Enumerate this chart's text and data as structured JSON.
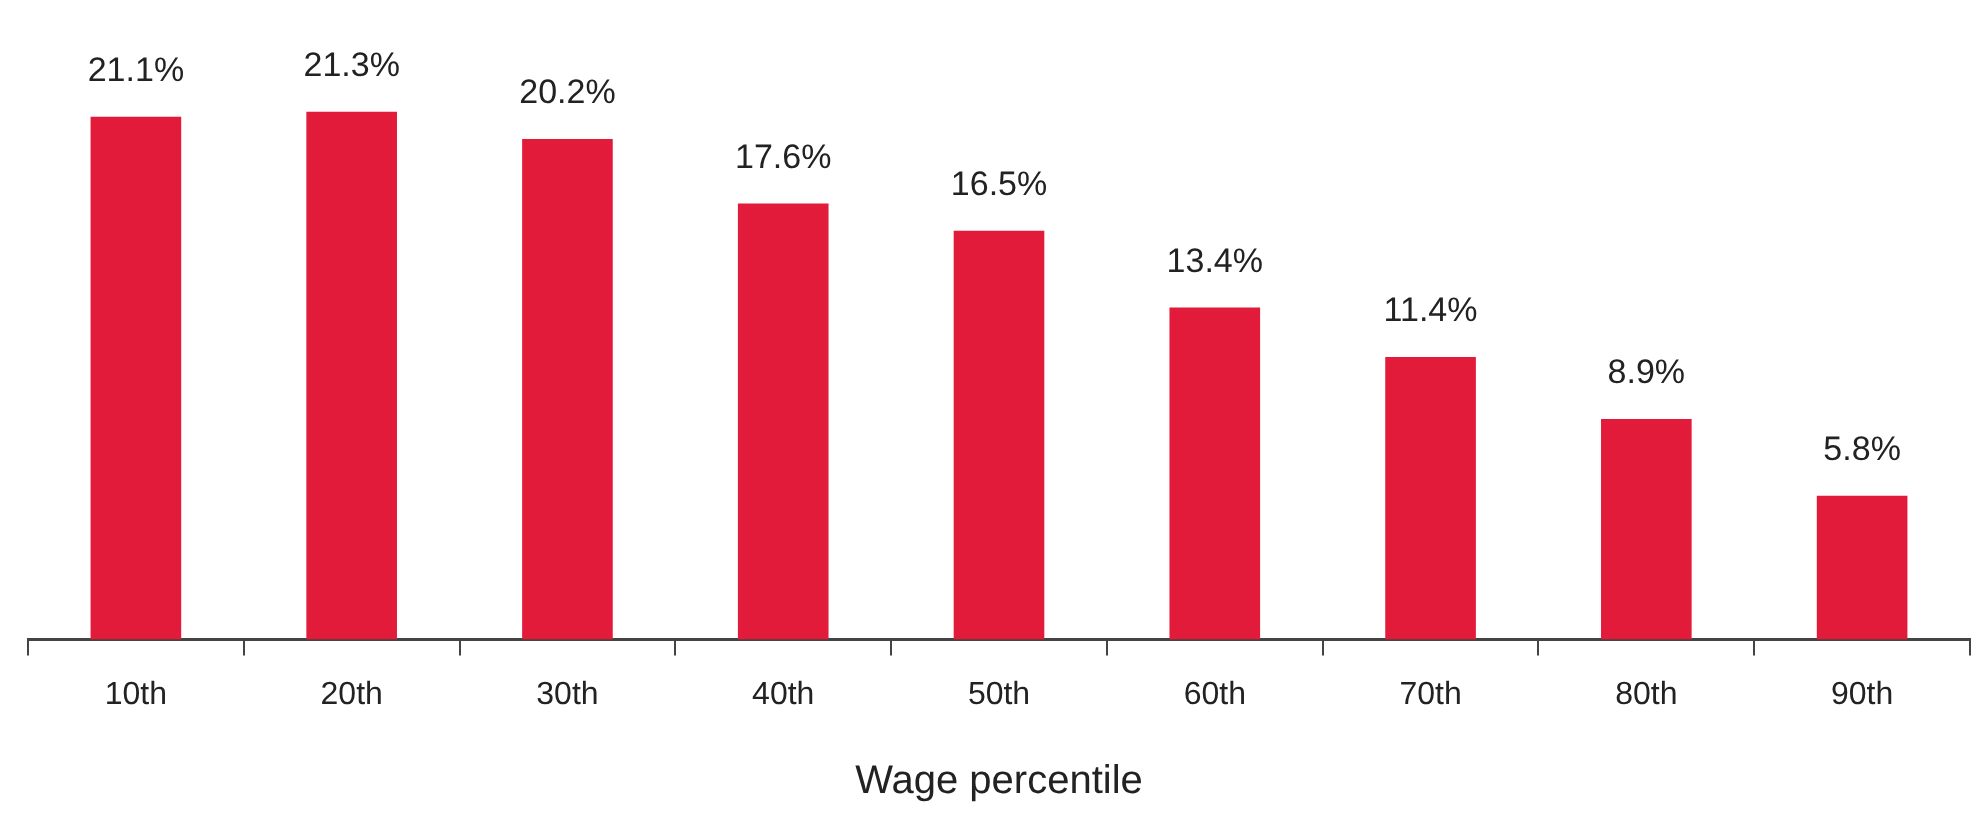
{
  "chart_data": {
    "type": "bar",
    "xlabel": "Wage percentile",
    "categories": [
      "10th",
      "20th",
      "30th",
      "40th",
      "50th",
      "60th",
      "70th",
      "80th",
      "90th"
    ],
    "values": [
      21.1,
      21.3,
      20.2,
      17.6,
      16.5,
      13.4,
      11.4,
      8.9,
      5.8
    ],
    "value_labels": [
      "21.1%",
      "21.3%",
      "20.2%",
      "17.6%",
      "16.5%",
      "13.4%",
      "11.4%",
      "8.9%",
      "5.8%"
    ],
    "color": "#e31b3a",
    "grid": false,
    "legend": false
  }
}
